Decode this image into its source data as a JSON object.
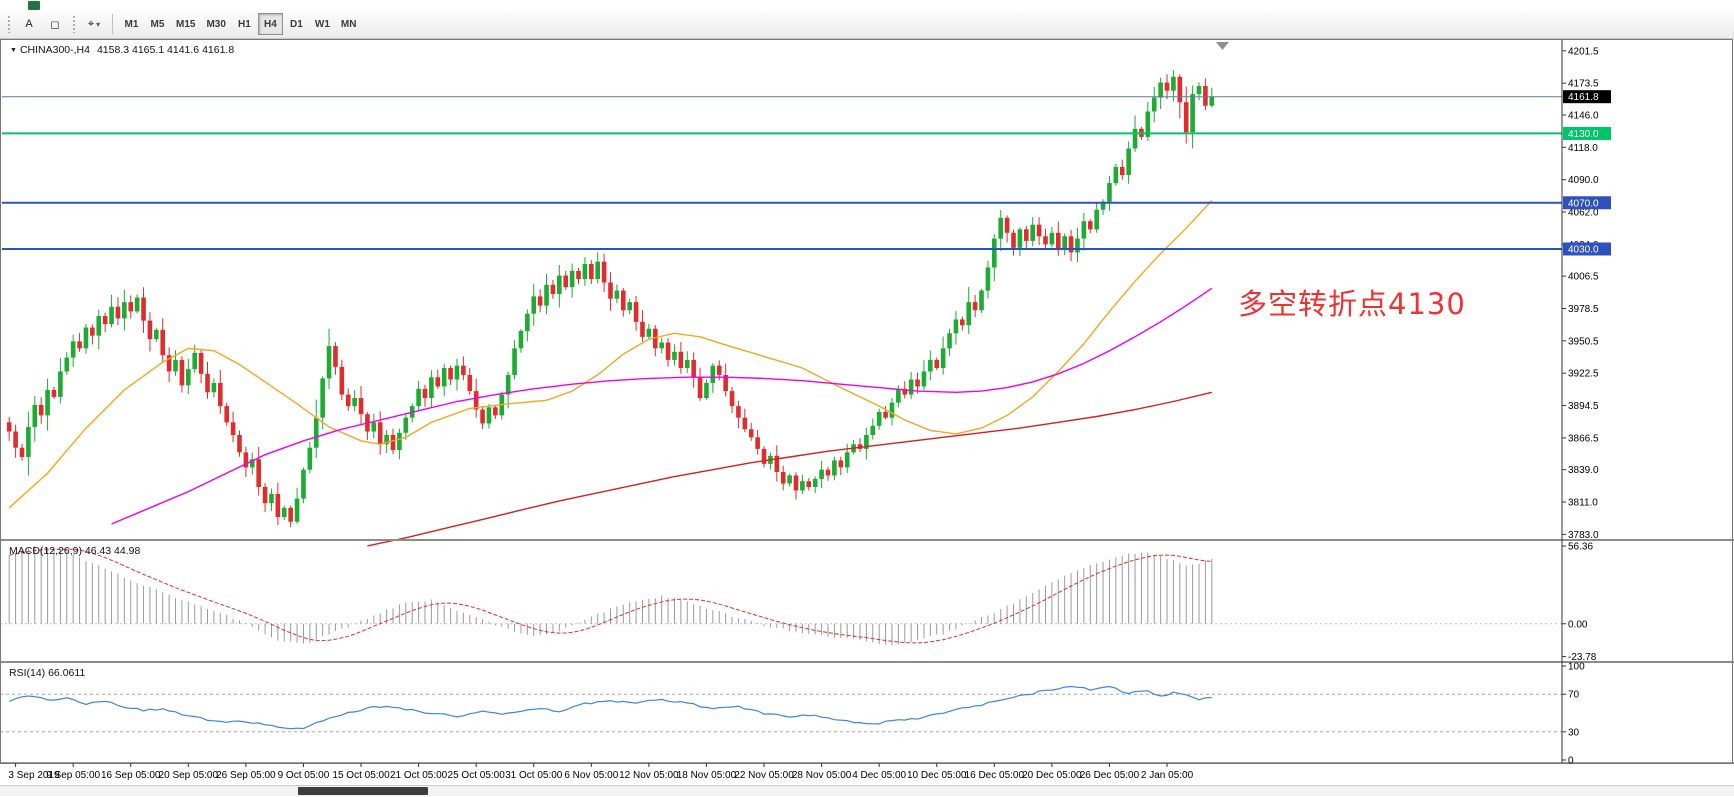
{
  "window": {
    "app_icon": "green-app-icon"
  },
  "toolbar": {
    "text_tool": "A",
    "shapes_tool": "◻",
    "cursor_tool": "⌖",
    "cursor_caret": "▾",
    "timeframes": [
      {
        "label": "M1",
        "active": false
      },
      {
        "label": "M5",
        "active": false
      },
      {
        "label": "M15",
        "active": false
      },
      {
        "label": "M30",
        "active": false
      },
      {
        "label": "H1",
        "active": false
      },
      {
        "label": "H4",
        "active": true
      },
      {
        "label": "D1",
        "active": false
      },
      {
        "label": "W1",
        "active": false
      },
      {
        "label": "MN",
        "active": false
      }
    ]
  },
  "main_chart": {
    "marker": "▼",
    "title": "CHINA300-,H4",
    "ohlc_text": "4158.3 4165.1 4141.6 4161.8",
    "annotation": "多空转折点4130",
    "current_price": "4161.8"
  },
  "chart_data": {
    "type": "candlestick",
    "symbol": "CHINA300-",
    "timeframe": "H4",
    "price_range": [
      3779,
      4210
    ],
    "price_axis_ticks": [
      "4201.5",
      "4173.5",
      "4146.0",
      "4118.0",
      "4090.0",
      "4062.0",
      "4034.0",
      "4006.5",
      "3978.5",
      "3950.5",
      "3922.5",
      "3894.5",
      "3866.5",
      "3839.0",
      "3811.0",
      "3783.0"
    ],
    "time_labels": [
      "3 Sep 2019",
      "9 Sep 05:00",
      "16 Sep 05:00",
      "20 Sep 05:00",
      "26 Sep 05:00",
      "9 Oct 05:00",
      "15 Oct 05:00",
      "21 Oct 05:00",
      "25 Oct 05:00",
      "31 Oct 05:00",
      "6 Nov 05:00",
      "12 Nov 05:00",
      "18 Nov 05:00",
      "22 Nov 05:00",
      "28 Nov 05:00",
      "4 Dec 05:00",
      "10 Dec 05:00",
      "16 Dec 05:00",
      "20 Dec 05:00",
      "26 Dec 05:00",
      "2 Jan 05:00"
    ],
    "open_first": 3880,
    "closes": [
      3872,
      3858,
      3850,
      3876,
      3895,
      3886,
      3908,
      3902,
      3924,
      3936,
      3950,
      3944,
      3962,
      3955,
      3972,
      3965,
      3980,
      3970,
      3984,
      3976,
      3988,
      3968,
      3952,
      3960,
      3938,
      3924,
      3934,
      3912,
      3926,
      3940,
      3922,
      3906,
      3914,
      3894,
      3880,
      3869,
      3854,
      3841,
      3848,
      3824,
      3810,
      3818,
      3798,
      3806,
      3794,
      3814,
      3839,
      3858,
      3884,
      3918,
      3946,
      3928,
      3904,
      3894,
      3901,
      3887,
      3872,
      3880,
      3861,
      3869,
      3856,
      3871,
      3884,
      3894,
      3909,
      3901,
      3919,
      3911,
      3927,
      3917,
      3929,
      3921,
      3907,
      3891,
      3879,
      3893,
      3886,
      3904,
      3921,
      3944,
      3959,
      3974,
      3989,
      3981,
      3999,
      3991,
      4007,
      3997,
      4011,
      4004,
      4017,
      4004,
      4019,
      4001,
      3987,
      3994,
      3977,
      3984,
      3967,
      3954,
      3961,
      3944,
      3949,
      3934,
      3941,
      3927,
      3934,
      3919,
      3901,
      3914,
      3929,
      3921,
      3907,
      3894,
      3884,
      3874,
      3867,
      3857,
      3844,
      3851,
      3837,
      3827,
      3834,
      3821,
      3829,
      3824,
      3831,
      3839,
      3834,
      3847,
      3841,
      3854,
      3861,
      3857,
      3869,
      3877,
      3889,
      3884,
      3897,
      3909,
      3904,
      3917,
      3911,
      3924,
      3934,
      3927,
      3944,
      3957,
      3969,
      3964,
      3984,
      3977,
      3994,
      4014,
      4039,
      4057,
      4044,
      4031,
      4047,
      4037,
      4051,
      4041,
      4034,
      4044,
      4029,
      4041,
      4027,
      4039,
      4054,
      4047,
      4064,
      4071,
      4087,
      4101,
      4094,
      4117,
      4134,
      4127,
      4149,
      4161,
      4174,
      4167,
      4179,
      4157,
      4131,
      4164,
      4171,
      4154,
      4161.8
    ],
    "colors": {
      "up": "#1cab33",
      "down": "#e02c2c",
      "ma_fast": "#f5a623",
      "ma_mid": "#f000f0",
      "ma_slow": "#d42020",
      "macd_hist": "#9a9a9a",
      "macd_signal": "#e03030",
      "rsi": "#3d85e0",
      "bid_line": "#5a7a9a"
    },
    "levels": [
      {
        "price": 4130.0,
        "color": "#00c46a",
        "width": 2,
        "badge": "4130.0"
      },
      {
        "price": 4070.0,
        "color": "#2e51c0",
        "width": 2,
        "badge": "4070.0"
      },
      {
        "price": 4030.0,
        "color": "#2e51c0",
        "width": 2,
        "badge": "4030.0"
      }
    ],
    "bid": {
      "price": 4161.8,
      "badge": "4161.8",
      "badge_bg": "#000000"
    },
    "ma_lines": [
      {
        "name": "ma-fast-line",
        "color": "#f5a623",
        "points": [
          [
            0,
            3806
          ],
          [
            6,
            3836
          ],
          [
            12,
            3875
          ],
          [
            18,
            3908
          ],
          [
            24,
            3932
          ],
          [
            28,
            3944
          ],
          [
            32,
            3942
          ],
          [
            36,
            3930
          ],
          [
            40,
            3915
          ],
          [
            45,
            3896
          ],
          [
            50,
            3876
          ],
          [
            55,
            3864
          ],
          [
            58,
            3861
          ],
          [
            62,
            3867
          ],
          [
            66,
            3880
          ],
          [
            72,
            3892
          ],
          [
            78,
            3896
          ],
          [
            84,
            3899
          ],
          [
            88,
            3907
          ],
          [
            92,
            3921
          ],
          [
            96,
            3939
          ],
          [
            100,
            3952
          ],
          [
            104,
            3957
          ],
          [
            108,
            3954
          ],
          [
            112,
            3947
          ],
          [
            118,
            3937
          ],
          [
            124,
            3927
          ],
          [
            130,
            3910
          ],
          [
            136,
            3894
          ],
          [
            140,
            3882
          ],
          [
            144,
            3873
          ],
          [
            148,
            3870
          ],
          [
            152,
            3875
          ],
          [
            156,
            3886
          ],
          [
            160,
            3902
          ],
          [
            164,
            3924
          ],
          [
            168,
            3948
          ],
          [
            172,
            3976
          ],
          [
            176,
            4002
          ],
          [
            180,
            4026
          ],
          [
            184,
            4048
          ],
          [
            188,
            4072
          ]
        ]
      },
      {
        "name": "ma-mid-line",
        "color": "#f000f0",
        "points": [
          [
            16,
            3792
          ],
          [
            22,
            3806
          ],
          [
            28,
            3820
          ],
          [
            34,
            3836
          ],
          [
            40,
            3852
          ],
          [
            46,
            3864
          ],
          [
            52,
            3874
          ],
          [
            58,
            3882
          ],
          [
            64,
            3890
          ],
          [
            70,
            3898
          ],
          [
            76,
            3904
          ],
          [
            82,
            3909
          ],
          [
            88,
            3913
          ],
          [
            94,
            3916
          ],
          [
            100,
            3918
          ],
          [
            106,
            3919
          ],
          [
            112,
            3919
          ],
          [
            118,
            3918
          ],
          [
            124,
            3916
          ],
          [
            130,
            3913
          ],
          [
            136,
            3910
          ],
          [
            142,
            3907
          ],
          [
            148,
            3906
          ],
          [
            152,
            3907
          ],
          [
            156,
            3910
          ],
          [
            160,
            3915
          ],
          [
            164,
            3922
          ],
          [
            168,
            3931
          ],
          [
            172,
            3942
          ],
          [
            176,
            3954
          ],
          [
            180,
            3967
          ],
          [
            184,
            3981
          ],
          [
            188,
            3996
          ]
        ]
      },
      {
        "name": "ma-slow-line",
        "color": "#d42020",
        "points": [
          [
            56,
            3773
          ],
          [
            62,
            3780
          ],
          [
            68,
            3788
          ],
          [
            74,
            3796
          ],
          [
            80,
            3804
          ],
          [
            86,
            3812
          ],
          [
            92,
            3819
          ],
          [
            98,
            3826
          ],
          [
            104,
            3833
          ],
          [
            110,
            3839
          ],
          [
            116,
            3845
          ],
          [
            122,
            3850
          ],
          [
            128,
            3855
          ],
          [
            134,
            3859
          ],
          [
            140,
            3863
          ],
          [
            146,
            3867
          ],
          [
            152,
            3871
          ],
          [
            158,
            3875
          ],
          [
            164,
            3880
          ],
          [
            170,
            3885
          ],
          [
            176,
            3891
          ],
          [
            182,
            3898
          ],
          [
            188,
            3906
          ]
        ]
      }
    ],
    "macd": {
      "label": "MACD(12,26,9) 46.43 44.98",
      "ticks": [
        "56.36",
        "0.00",
        "-23.78"
      ],
      "tick_values": [
        56.36,
        0,
        -23.78
      ],
      "range": [
        -27,
        60
      ],
      "hist_points": [
        [
          0,
          50
        ],
        [
          4,
          56
        ],
        [
          8,
          54
        ],
        [
          12,
          46
        ],
        [
          16,
          38
        ],
        [
          22,
          26
        ],
        [
          28,
          16
        ],
        [
          34,
          6
        ],
        [
          38,
          -2
        ],
        [
          42,
          -12
        ],
        [
          46,
          -15
        ],
        [
          50,
          -8
        ],
        [
          54,
          0
        ],
        [
          58,
          8
        ],
        [
          62,
          15
        ],
        [
          66,
          17
        ],
        [
          70,
          10
        ],
        [
          74,
          3
        ],
        [
          78,
          -4
        ],
        [
          82,
          -9
        ],
        [
          86,
          -5
        ],
        [
          90,
          3
        ],
        [
          94,
          11
        ],
        [
          98,
          17
        ],
        [
          102,
          20
        ],
        [
          106,
          16
        ],
        [
          110,
          10
        ],
        [
          114,
          4
        ],
        [
          118,
          -1
        ],
        [
          122,
          -5
        ],
        [
          126,
          -8
        ],
        [
          130,
          -10
        ],
        [
          134,
          -13
        ],
        [
          138,
          -15
        ],
        [
          142,
          -12
        ],
        [
          146,
          -7
        ],
        [
          150,
          0
        ],
        [
          154,
          8
        ],
        [
          158,
          18
        ],
        [
          162,
          28
        ],
        [
          166,
          37
        ],
        [
          170,
          44
        ],
        [
          174,
          50
        ],
        [
          178,
          52
        ],
        [
          181,
          47
        ],
        [
          184,
          42
        ],
        [
          186,
          44
        ],
        [
          188,
          47
        ]
      ]
    },
    "rsi": {
      "label": "RSI(14) 66.0611",
      "ticks": [
        "100",
        "70",
        "30",
        "0"
      ],
      "tick_values": [
        100,
        70,
        30,
        0
      ],
      "level_lines": [
        70,
        30
      ],
      "points": [
        [
          0,
          62
        ],
        [
          3,
          68
        ],
        [
          6,
          64
        ],
        [
          9,
          66
        ],
        [
          12,
          60
        ],
        [
          15,
          63
        ],
        [
          18,
          57
        ],
        [
          21,
          52
        ],
        [
          24,
          55
        ],
        [
          27,
          48
        ],
        [
          30,
          44
        ],
        [
          33,
          40
        ],
        [
          36,
          42
        ],
        [
          40,
          38
        ],
        [
          44,
          34
        ],
        [
          46,
          33
        ],
        [
          50,
          45
        ],
        [
          54,
          52
        ],
        [
          58,
          57
        ],
        [
          62,
          54
        ],
        [
          66,
          50
        ],
        [
          70,
          46
        ],
        [
          74,
          52
        ],
        [
          78,
          49
        ],
        [
          82,
          55
        ],
        [
          86,
          52
        ],
        [
          90,
          60
        ],
        [
          94,
          63
        ],
        [
          98,
          60
        ],
        [
          102,
          65
        ],
        [
          106,
          60
        ],
        [
          110,
          55
        ],
        [
          114,
          57
        ],
        [
          118,
          50
        ],
        [
          122,
          46
        ],
        [
          126,
          48
        ],
        [
          130,
          42
        ],
        [
          134,
          38
        ],
        [
          138,
          41
        ],
        [
          142,
          44
        ],
        [
          146,
          50
        ],
        [
          150,
          56
        ],
        [
          154,
          62
        ],
        [
          158,
          68
        ],
        [
          162,
          74
        ],
        [
          166,
          78
        ],
        [
          169,
          75
        ],
        [
          172,
          78
        ],
        [
          175,
          71
        ],
        [
          178,
          73
        ],
        [
          180,
          67
        ],
        [
          182,
          71
        ],
        [
          184,
          69
        ],
        [
          186,
          64
        ],
        [
          188,
          66
        ]
      ]
    }
  }
}
